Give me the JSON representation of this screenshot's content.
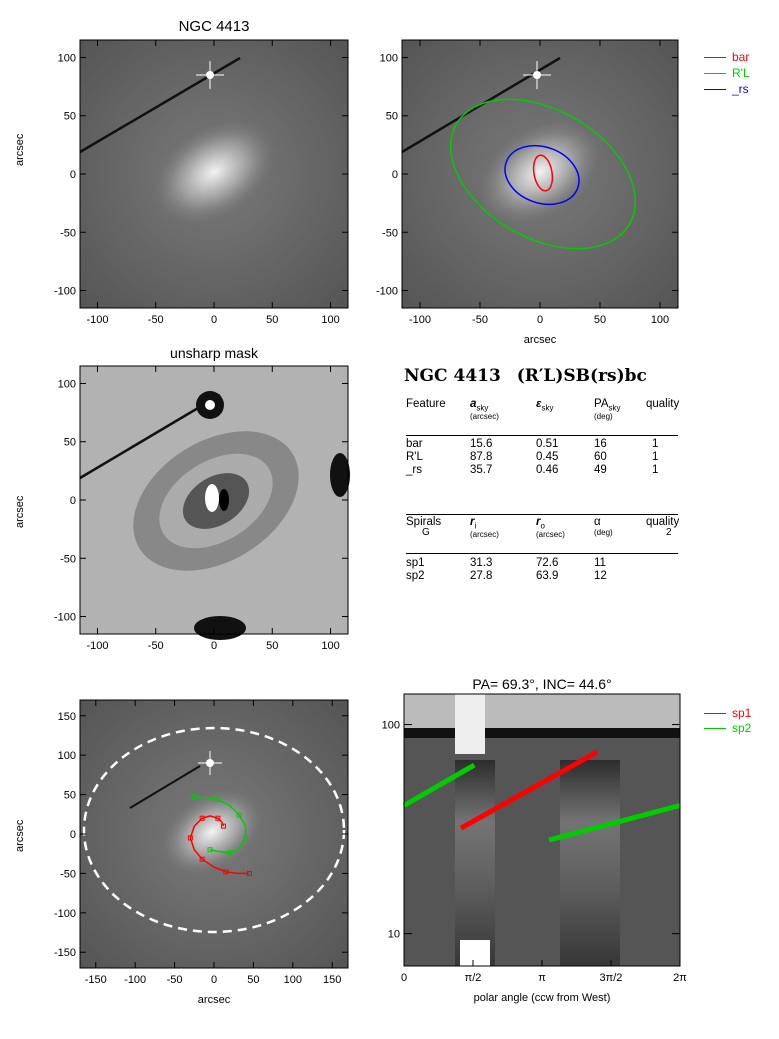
{
  "panels": {
    "p1": {
      "title": "NGC 4413",
      "ylabel": "arcsec",
      "xticks": [
        "-100",
        "-50",
        "0",
        "50",
        "100"
      ],
      "yticks": [
        "100",
        "50",
        "0",
        "-50",
        "-100"
      ]
    },
    "p2": {
      "xlabel": "arcsec",
      "xticks": [
        "-100",
        "-50",
        "0",
        "50",
        "100"
      ],
      "yticks": [
        "100",
        "50",
        "0",
        "-50",
        "-100"
      ]
    },
    "p3": {
      "title": "unsharp mask",
      "ylabel": "arcsec",
      "xticks": [
        "-100",
        "-50",
        "0",
        "50",
        "100"
      ],
      "yticks": [
        "100",
        "50",
        "0",
        "-50",
        "-100"
      ]
    },
    "p5": {
      "xlabel": "arcsec",
      "ylabel": "arcsec",
      "xticks": [
        "-150",
        "-100",
        "-50",
        "0",
        "50",
        "100",
        "150"
      ],
      "yticks": [
        "150",
        "100",
        "50",
        "0",
        "-50",
        "-100",
        "-150"
      ]
    },
    "p6": {
      "title": "PA= 69.3°, INC= 44.6°",
      "xlabel": "polar angle (ccw from West)",
      "xticks": [
        "0",
        "π/2",
        "π",
        "3π/2",
        "2π"
      ],
      "yticks": [
        "100",
        "10"
      ]
    }
  },
  "legend_top": [
    {
      "label": "bar",
      "color": "#ff0000"
    },
    {
      "label": "R'L",
      "color": "#00cc00"
    },
    {
      "label": "_rs",
      "color": "#0000ff"
    }
  ],
  "legend_bottom": [
    {
      "label": "sp1",
      "color": "#ff0000"
    },
    {
      "label": "sp2",
      "color": "#00cc00"
    }
  ],
  "classification": {
    "name": "NGC 4413",
    "type": "(R′L)SB(rs)bc"
  },
  "features_table": {
    "headers": [
      {
        "main": "Feature",
        "sub": ""
      },
      {
        "main": "a",
        "main_sub": "sky",
        "sub": "(arcsec)"
      },
      {
        "main": "ε",
        "main_sub": "sky",
        "sub": ""
      },
      {
        "main": "PA",
        "main_sub": "sky",
        "sub": "(deg)"
      },
      {
        "main": "quality",
        "sub": ""
      }
    ],
    "rows": [
      [
        "bar",
        "15.6",
        "0.51",
        "16",
        "1"
      ],
      [
        "R'L",
        "87.8",
        "0.45",
        "60",
        "1"
      ],
      [
        "_rs",
        "35.7",
        "0.46",
        "49",
        "1"
      ]
    ]
  },
  "spirals_table": {
    "headers": [
      {
        "main": "Spirals",
        "sub": "G"
      },
      {
        "main": "r",
        "main_sub": "i",
        "sub": "(arcsec)"
      },
      {
        "main": "r",
        "main_sub": "o",
        "sub": "(arcsec)"
      },
      {
        "main": "α",
        "sub": "(deg)"
      },
      {
        "main": "quality",
        "sub": "2"
      }
    ],
    "rows": [
      [
        "sp1",
        "31.3",
        "72.6",
        "11",
        ""
      ],
      [
        "sp2",
        "27.8",
        "63.9",
        "12",
        ""
      ]
    ]
  },
  "chart_data": [
    {
      "type": "image",
      "title": "NGC 4413",
      "xlabel": "",
      "ylabel": "arcsec",
      "xlim": [
        -115,
        115
      ],
      "ylim": [
        -115,
        115
      ]
    },
    {
      "type": "image",
      "xlabel": "arcsec",
      "ylabel": "",
      "xlim": [
        -115,
        115
      ],
      "ylim": [
        -115,
        115
      ],
      "ellipses": [
        {
          "name": "bar",
          "a": 15.6,
          "eps": 0.51,
          "pa": 16,
          "color": "#ff0000"
        },
        {
          "name": "R'L",
          "a": 87.8,
          "eps": 0.45,
          "pa": 60,
          "color": "#00cc00"
        },
        {
          "name": "_rs",
          "a": 35.7,
          "eps": 0.46,
          "pa": 49,
          "color": "#0000ff"
        }
      ]
    },
    {
      "type": "image",
      "title": "unsharp mask",
      "ylabel": "arcsec",
      "xlim": [
        -115,
        115
      ],
      "ylim": [
        -115,
        115
      ]
    },
    {
      "type": "image",
      "xlabel": "arcsec",
      "ylabel": "arcsec",
      "xlim": [
        -170,
        170
      ],
      "ylim": [
        -170,
        170
      ],
      "series": [
        {
          "name": "sp1",
          "color": "#ff0000",
          "x": [
            45,
            30,
            15,
            0,
            -15,
            -25,
            -30,
            -25,
            -15,
            -5,
            5,
            10,
            12
          ],
          "y": [
            -50,
            -50,
            -48,
            -42,
            -32,
            -20,
            -5,
            10,
            20,
            23,
            20,
            15,
            10
          ]
        },
        {
          "name": "sp2",
          "color": "#00cc00",
          "x": [
            -25,
            -10,
            5,
            20,
            32,
            40,
            40,
            32,
            20,
            5,
            -5
          ],
          "y": [
            47,
            46,
            44,
            36,
            24,
            10,
            -5,
            -18,
            -24,
            -22,
            -20
          ]
        }
      ]
    },
    {
      "type": "line",
      "title": "PA= 69.3°, INC= 44.6°",
      "xlabel": "polar angle (ccw from West)",
      "xlim": [
        0,
        6.283
      ],
      "ylim": [
        7,
        140
      ],
      "yscale": "log",
      "series": [
        {
          "name": "sp1",
          "color": "#ff0000",
          "x": [
            1.3,
            4.4
          ],
          "y": [
            32,
            74
          ]
        },
        {
          "name": "sp2",
          "color": "#00cc00",
          "x": [
            0.0,
            1.6
          ],
          "y": [
            41,
            64
          ]
        },
        {
          "name": "sp2",
          "color": "#00cc00",
          "x": [
            3.3,
            6.283
          ],
          "y": [
            28,
            41
          ]
        }
      ]
    }
  ]
}
